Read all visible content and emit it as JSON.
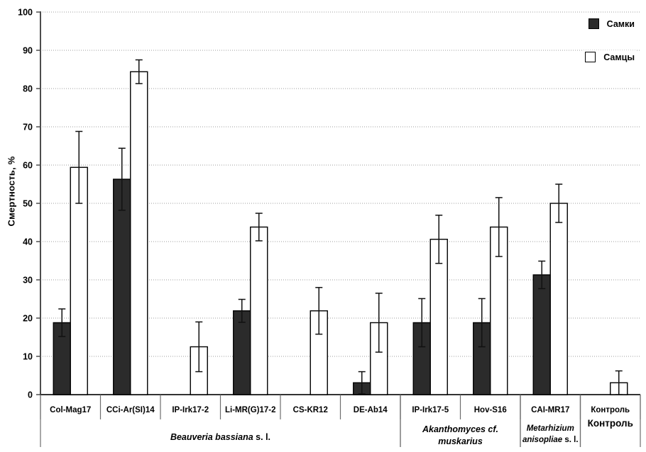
{
  "chart_data": {
    "type": "bar",
    "title": "",
    "ylabel": "Смертность, %",
    "xlabel": "",
    "ylim": [
      0,
      100
    ],
    "ytick_step": 10,
    "grid": "horizontal-dotted",
    "legend_position": "top-right",
    "error_bars": true,
    "colors": {
      "bar_dark": "#2b2b2b",
      "bar_light": "#ffffff",
      "bar_stroke": "#000000",
      "grid_line": "#9e9e9e",
      "axis_line": "#4d4d4d",
      "divider_line": "#6e6e6e",
      "text": "#000000"
    },
    "categories": [
      "Col-Mag17",
      "CCi-Ar(SI)14",
      "IP-Irk17-2",
      "Li-MR(G)17-2",
      "CS-KR12",
      "DE-Ab14",
      "IP-Irk17-5",
      "Hov-S16",
      "CAI-MR17",
      "Контроль"
    ],
    "series": [
      {
        "name": "Самки",
        "fill": "#2b2b2b",
        "values": [
          18.8,
          56.3,
          null,
          21.9,
          null,
          3.1,
          18.8,
          18.8,
          31.3,
          null
        ],
        "errors": [
          3.6,
          8.1,
          null,
          3.0,
          null,
          2.9,
          6.3,
          6.3,
          3.6,
          null
        ]
      },
      {
        "name": "Самцы",
        "fill": "#ffffff",
        "values": [
          59.4,
          84.4,
          12.5,
          43.8,
          21.9,
          18.8,
          40.6,
          43.8,
          50.0,
          3.1
        ],
        "errors": [
          9.4,
          3.1,
          6.5,
          3.6,
          6.1,
          7.7,
          6.3,
          7.7,
          5.0,
          3.1
        ]
      }
    ],
    "groups": [
      {
        "span": [
          0,
          6
        ],
        "lines": [
          [
            {
              "text": "Beauveria bassiana",
              "italic": true
            },
            {
              "text": " s. l.",
              "italic": false
            }
          ]
        ]
      },
      {
        "span": [
          6,
          8
        ],
        "lines": [
          [
            {
              "text": "Akanthomyces cf.",
              "italic": true
            }
          ],
          [
            {
              "text": "muskarius",
              "italic": true
            }
          ]
        ]
      },
      {
        "span": [
          8,
          9
        ],
        "small": true,
        "lines": [
          [
            {
              "text": "Metarhizium",
              "italic": true
            }
          ],
          [
            {
              "text": "anisopliae",
              "italic": true
            },
            {
              "text": " s. l.",
              "italic": false
            }
          ]
        ]
      },
      {
        "span": [
          9,
          10
        ],
        "tall": true,
        "lines": [
          [
            {
              "text": "Контроль",
              "italic": false
            }
          ]
        ]
      }
    ],
    "yticks": [
      "0",
      "10",
      "20",
      "30",
      "40",
      "50",
      "60",
      "70",
      "80",
      "90",
      "100"
    ]
  }
}
